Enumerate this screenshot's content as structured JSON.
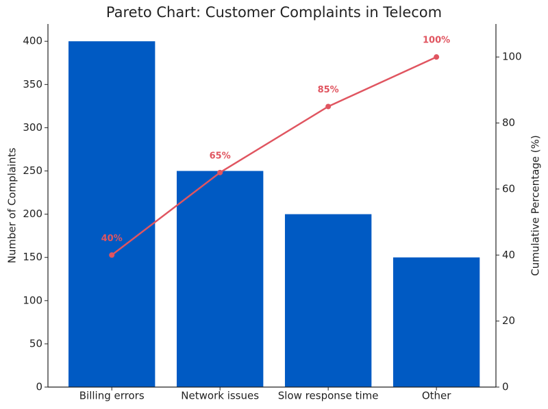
{
  "chart_data": {
    "type": "pareto",
    "title": "Pareto Chart: Customer Complaints in Telecom",
    "y_label": "Number of Complaints",
    "y2_label": "Cumulative Percentage (%)",
    "categories": [
      "Billing errors",
      "Network issues",
      "Slow response time",
      "Other"
    ],
    "series": [
      {
        "type": "bar",
        "color": "#005ac3",
        "values": [
          400,
          250,
          200,
          150
        ]
      },
      {
        "type": "line",
        "axis": "y2",
        "color": "#e05560",
        "values": [
          40,
          65,
          85,
          100
        ],
        "value_labels": [
          "40%",
          "65%",
          "85%",
          "100%"
        ]
      }
    ],
    "ylim": [
      0,
      420
    ],
    "yticks": [
      0,
      50,
      100,
      150,
      200,
      250,
      300,
      350,
      400
    ],
    "y2lim": [
      0,
      110
    ],
    "y2ticks": [
      0,
      20,
      40,
      60,
      80,
      100
    ]
  }
}
